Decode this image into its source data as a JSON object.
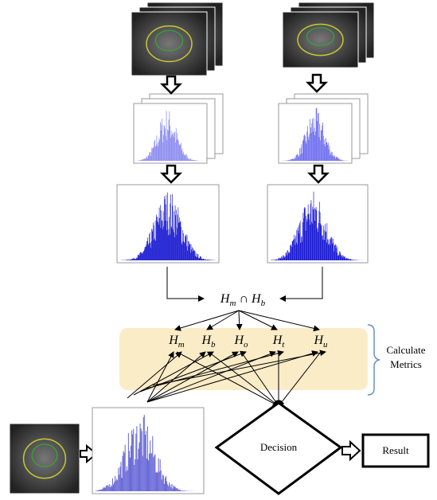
{
  "intersection": {
    "left": {
      "base": "H",
      "sub": "m"
    },
    "op": "∩",
    "right": {
      "base": "H",
      "sub": "b"
    }
  },
  "metrics": [
    {
      "base": "H",
      "sub": "m"
    },
    {
      "base": "H",
      "sub": "b"
    },
    {
      "base": "H",
      "sub": "o"
    },
    {
      "base": "H",
      "sub": "t"
    },
    {
      "base": "H",
      "sub": "u"
    }
  ],
  "panel_label": [
    "Calculate",
    "Metrics"
  ],
  "decision": "Decision",
  "result": "Result"
}
